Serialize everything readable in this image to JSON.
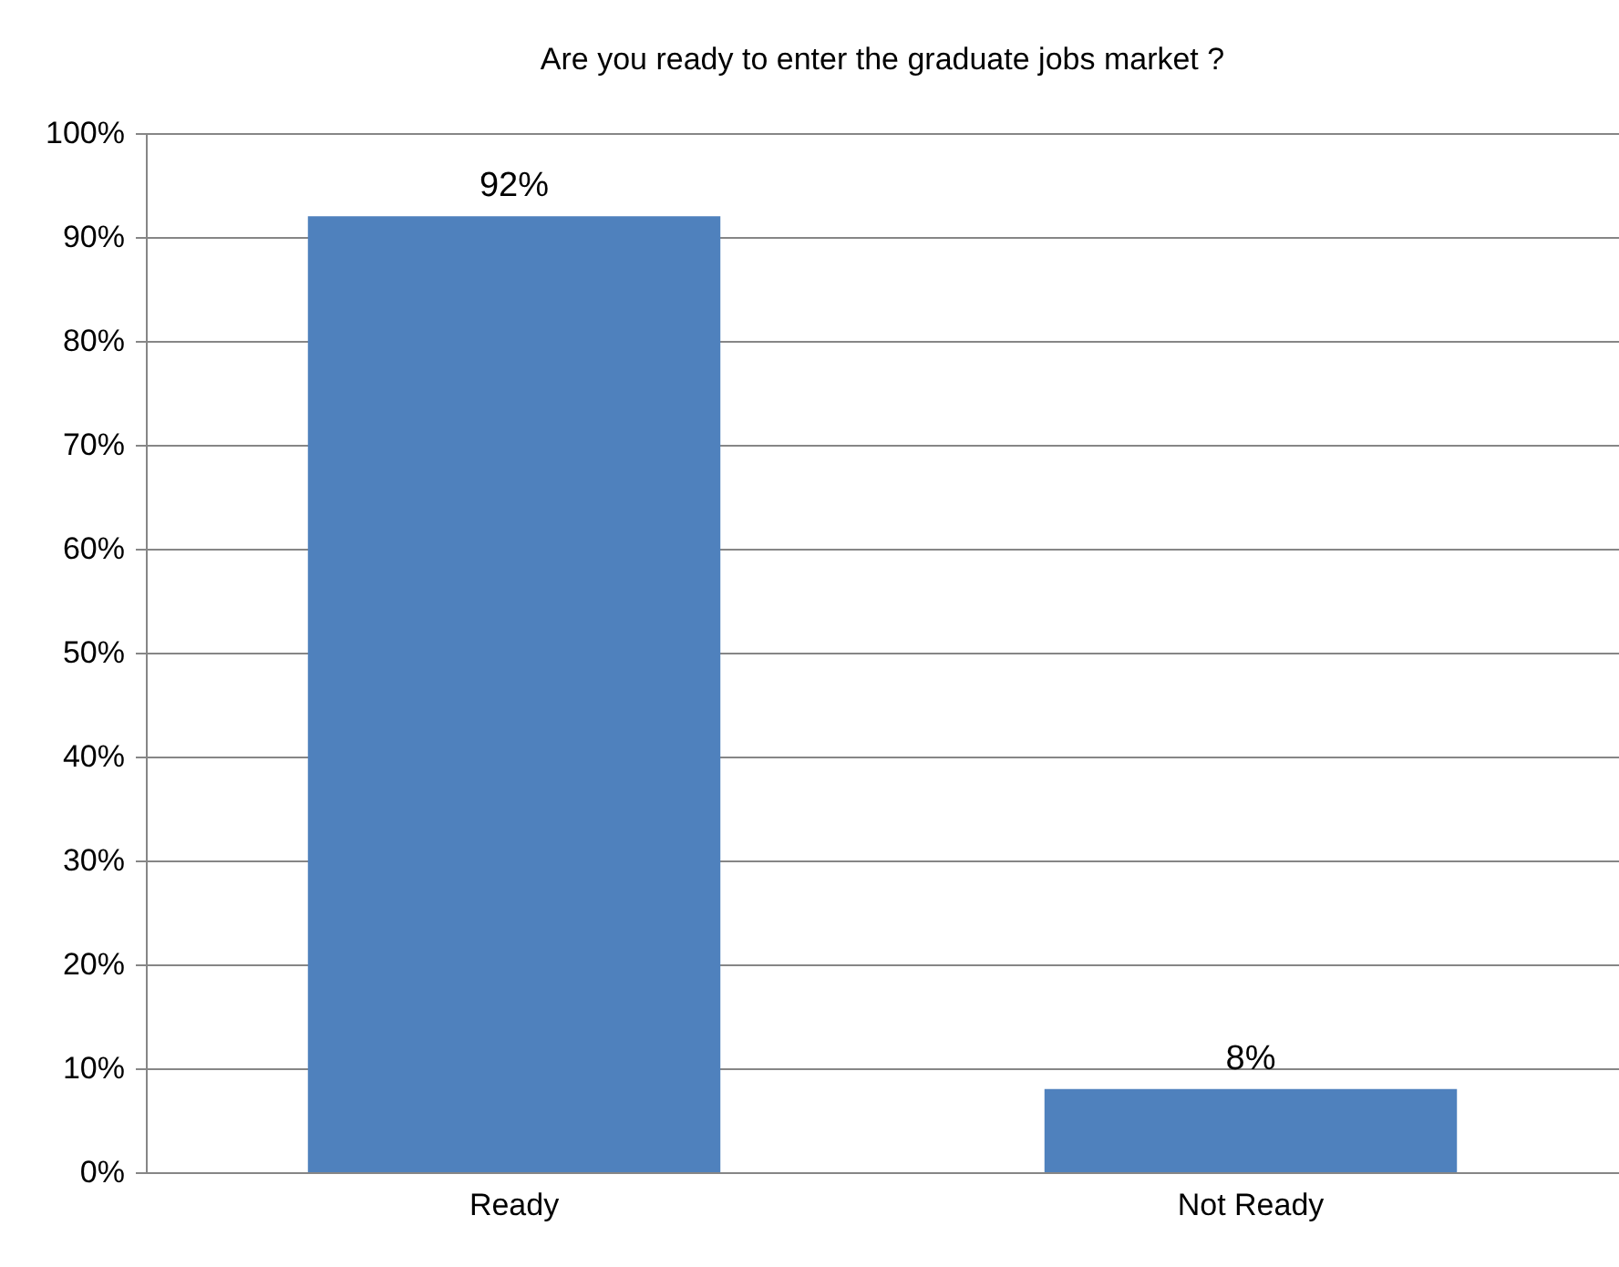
{
  "chart_data": {
    "type": "bar",
    "title": "Are you ready to enter the graduate jobs market ?",
    "categories": [
      "Ready",
      "Not Ready"
    ],
    "values": [
      92,
      8
    ],
    "value_labels": [
      "92%",
      "8%"
    ],
    "color": "#4f81bd",
    "ylim": [
      0,
      100
    ],
    "yticks": [
      {
        "value": 0,
        "label": "0%"
      },
      {
        "value": 10,
        "label": "10%"
      },
      {
        "value": 20,
        "label": "20%"
      },
      {
        "value": 30,
        "label": "30%"
      },
      {
        "value": 40,
        "label": "40%"
      },
      {
        "value": 50,
        "label": "50%"
      },
      {
        "value": 60,
        "label": "60%"
      },
      {
        "value": 70,
        "label": "70%"
      },
      {
        "value": 80,
        "label": "80%"
      },
      {
        "value": 90,
        "label": "90%"
      },
      {
        "value": 100,
        "label": "100%"
      }
    ],
    "grid": "y"
  }
}
